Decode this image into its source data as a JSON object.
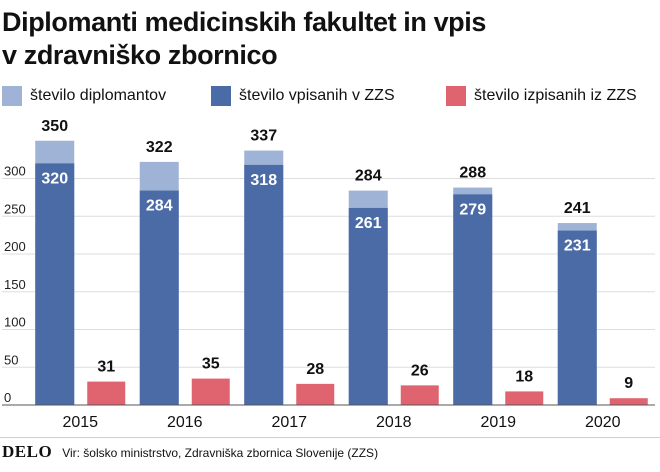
{
  "title_lines": [
    "Diplomanti medicinskih fakultet in vpis",
    "v zdravniško zbornico"
  ],
  "colors": {
    "graduates": "#9fb3d6",
    "registered": "#4a6ba6",
    "deregistered": "#e0646f",
    "axis_text": "#222222",
    "grid": "#dddddd"
  },
  "chart_data": {
    "type": "bar",
    "title": "Diplomanti medicinskih fakultet in vpis v zdravniško zbornico",
    "categories": [
      "2015",
      "2016",
      "2017",
      "2018",
      "2019",
      "2020"
    ],
    "series": [
      {
        "name": "število diplomantov",
        "values": [
          350,
          322,
          337,
          284,
          288,
          241
        ]
      },
      {
        "name": "število vpisanih v ZZS",
        "values": [
          320,
          284,
          318,
          261,
          279,
          231
        ]
      },
      {
        "name": "število izpisanih iz ZZS",
        "values": [
          31,
          35,
          28,
          26,
          18,
          9
        ]
      }
    ],
    "yticks": [
      0,
      50,
      100,
      150,
      200,
      250,
      300
    ],
    "ylim": [
      0,
      350
    ],
    "xlabel": "",
    "ylabel": "",
    "legend": "top",
    "grid": true
  },
  "footer": {
    "logo": "DELO",
    "source": "Vir: šolsko ministrstvo, Zdravniška zbornica Slovenije (ZZS)"
  }
}
